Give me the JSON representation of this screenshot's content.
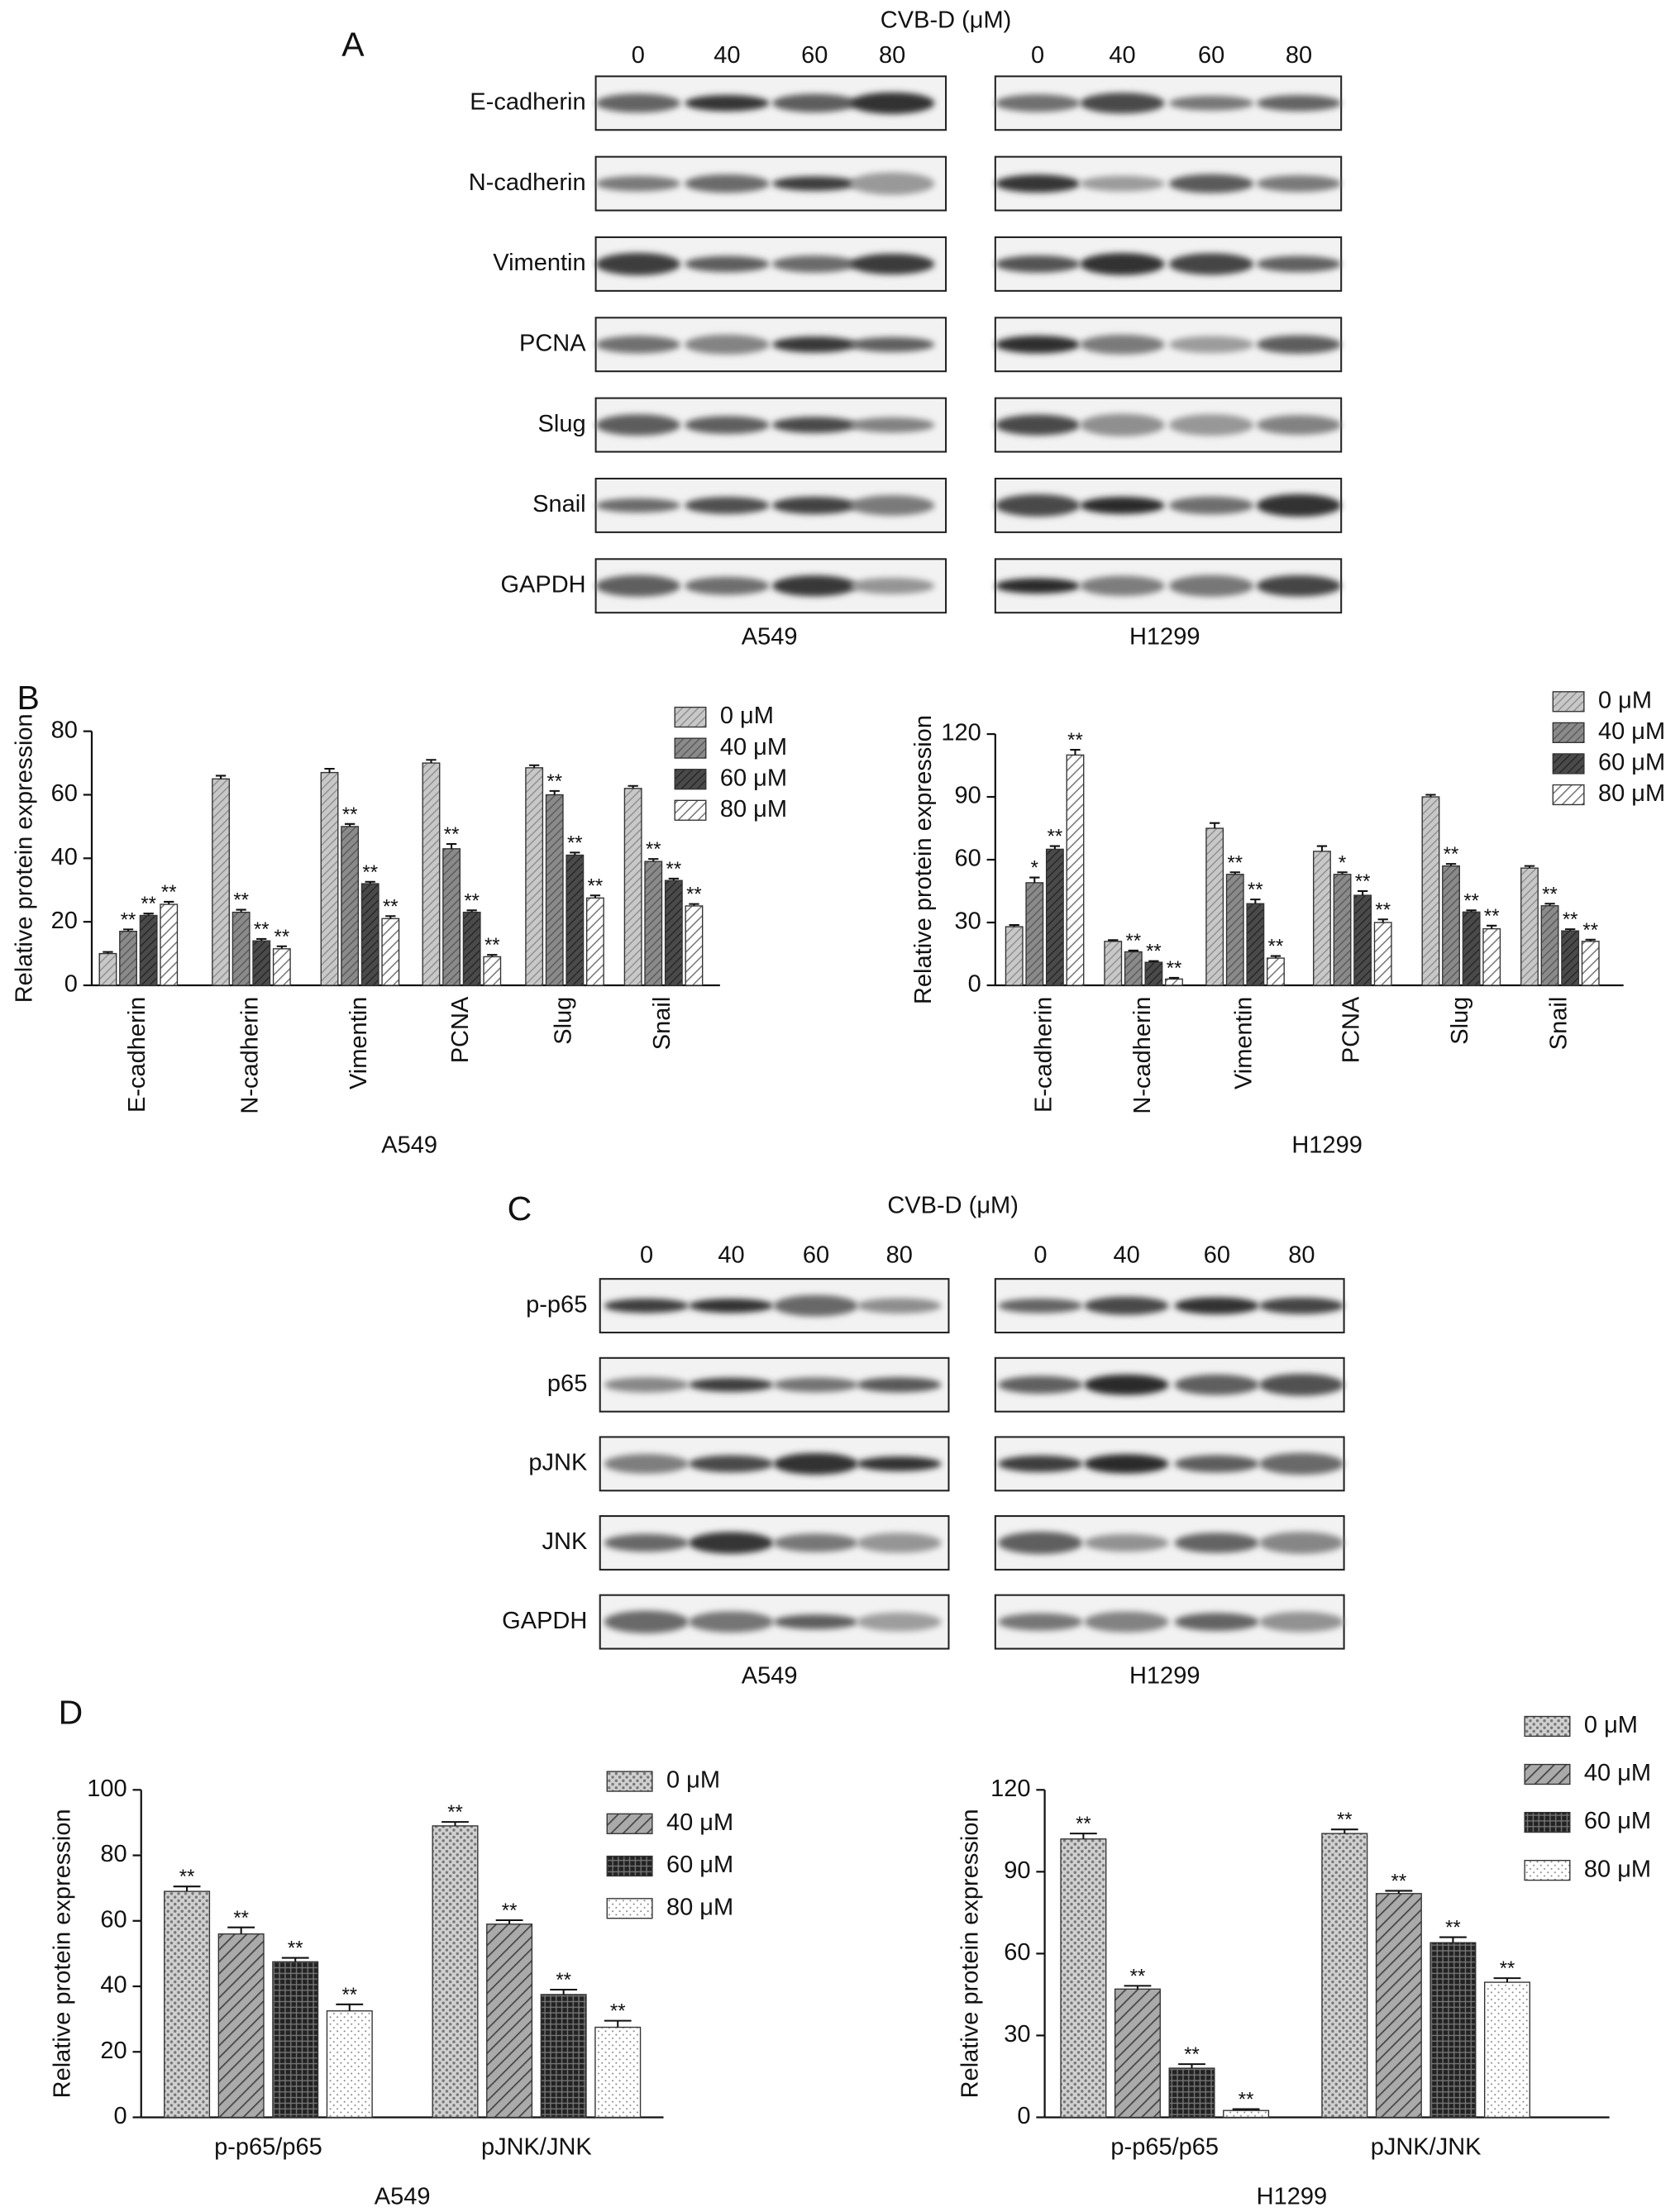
{
  "panels": [
    "A",
    "B",
    "C",
    "D"
  ],
  "blots": [
    {
      "title": "CVB-D (μM)",
      "cell_lines": [
        {
          "name": "A549",
          "doses": [
            "0",
            "40",
            "60",
            "80"
          ]
        },
        {
          "name": "H1299",
          "doses": [
            "0",
            "40",
            "60",
            "80"
          ]
        }
      ],
      "proteins": [
        "E-cadherin",
        "N-cadherin",
        "Vimentin",
        "PCNA",
        "Slug",
        "Snail",
        "GAPDH"
      ]
    },
    {
      "title": "CVB-D (μM)",
      "cell_lines": [
        {
          "name": "A549",
          "doses": [
            "0",
            "40",
            "60",
            "80"
          ]
        },
        {
          "name": "H1299",
          "doses": [
            "0",
            "40",
            "60",
            "80"
          ]
        }
      ],
      "proteins": [
        "p-p65",
        "p65",
        "pJNK",
        "JNK",
        "GAPDH"
      ]
    }
  ],
  "chart_data": [
    {
      "type": "bar",
      "ylabel": "Relative protein expression",
      "xlabel": "A549",
      "categories": [
        "E-cadherin",
        "N-cadherin",
        "Vimentin",
        "PCNA",
        "Slug",
        "Snail"
      ],
      "ylim": [
        0,
        80
      ],
      "yticks": [
        0,
        20,
        40,
        60,
        80
      ],
      "category_rotation": 90,
      "series": [
        {
          "name": "0 μM",
          "pattern": "b0",
          "values": [
            10,
            65,
            67,
            70,
            68.5,
            62
          ],
          "errors": [
            0.5,
            1,
            1.2,
            1,
            0.8,
            0.8
          ],
          "annotations": [
            null,
            null,
            null,
            null,
            null,
            null
          ]
        },
        {
          "name": "40 μM",
          "pattern": "b1",
          "values": [
            17,
            23,
            50,
            43,
            60,
            39
          ],
          "errors": [
            0.6,
            0.8,
            0.8,
            1.5,
            1.2,
            0.8
          ],
          "annotations": [
            "**",
            "**",
            "**",
            "**",
            "**",
            "**"
          ]
        },
        {
          "name": "60 μM",
          "pattern": "b2",
          "values": [
            22,
            14,
            32,
            23,
            41,
            33
          ],
          "errors": [
            0.6,
            0.6,
            0.6,
            0.6,
            0.8,
            0.6
          ],
          "annotations": [
            "**",
            "**",
            "**",
            "**",
            "**",
            "**"
          ]
        },
        {
          "name": "80 μM",
          "pattern": "b3",
          "values": [
            25.5,
            11.5,
            21,
            9,
            27.5,
            25
          ],
          "errors": [
            0.8,
            0.8,
            0.8,
            0.6,
            0.8,
            0.6
          ],
          "annotations": [
            "**",
            "**",
            "**",
            "**",
            "**",
            "**"
          ]
        }
      ]
    },
    {
      "type": "bar",
      "ylabel": "Relative protein expression",
      "xlabel": "H1299",
      "categories": [
        "E-cadherin",
        "N-cadherin",
        "Vimentin",
        "PCNA",
        "Slug",
        "Snail"
      ],
      "ylim": [
        0,
        120
      ],
      "yticks": [
        0,
        30,
        60,
        90,
        120
      ],
      "category_rotation": 90,
      "series": [
        {
          "name": "0 μM",
          "pattern": "b0",
          "values": [
            28,
            21,
            75,
            64,
            90,
            56
          ],
          "errors": [
            0.8,
            0.6,
            2.5,
            2.5,
            1,
            1
          ],
          "annotations": [
            null,
            null,
            null,
            null,
            null,
            null
          ]
        },
        {
          "name": "40 μM",
          "pattern": "b1",
          "values": [
            49,
            16,
            53,
            53,
            57,
            38
          ],
          "errors": [
            2.5,
            0.6,
            1,
            1,
            1,
            1
          ],
          "annotations": [
            "*",
            "**",
            "**",
            "*",
            "**",
            "**"
          ]
        },
        {
          "name": "60 μM",
          "pattern": "b2",
          "values": [
            65,
            11,
            39,
            43,
            35,
            26
          ],
          "errors": [
            1.5,
            0.6,
            2,
            2,
            0.8,
            0.8
          ],
          "annotations": [
            "**",
            "**",
            "**",
            "**",
            "**",
            "**"
          ]
        },
        {
          "name": "80 μM",
          "pattern": "b3",
          "values": [
            110,
            3,
            13,
            30,
            27,
            21
          ],
          "errors": [
            2.5,
            0.6,
            1,
            1.5,
            1.5,
            0.8
          ],
          "annotations": [
            "**",
            "**",
            "**",
            "**",
            "**",
            "**"
          ]
        }
      ]
    },
    {
      "type": "bar",
      "ylabel": "Relative protein expression",
      "xlabel": "A549",
      "categories": [
        "p-p65/p65",
        "pJNK/JNK"
      ],
      "ylim": [
        0,
        100
      ],
      "yticks": [
        0,
        20,
        40,
        60,
        80,
        100
      ],
      "category_rotation": 0,
      "series": [
        {
          "name": "0 μM",
          "pattern": "d0",
          "values": [
            69,
            89
          ],
          "errors": [
            1.5,
            1.2
          ],
          "annotations": [
            "**",
            "**"
          ]
        },
        {
          "name": "40 μM",
          "pattern": "d1",
          "values": [
            56,
            59
          ],
          "errors": [
            2,
            1.2
          ],
          "annotations": [
            "**",
            "**"
          ]
        },
        {
          "name": "60 μM",
          "pattern": "d2",
          "values": [
            47.5,
            37.5
          ],
          "errors": [
            1.2,
            1.5
          ],
          "annotations": [
            "**",
            "**"
          ]
        },
        {
          "name": "80 μM",
          "pattern": "d3",
          "values": [
            32.5,
            27.5
          ],
          "errors": [
            2,
            2
          ],
          "annotations": [
            "**",
            "**"
          ]
        }
      ]
    },
    {
      "type": "bar",
      "ylabel": "Relative protein expression",
      "xlabel": "H1299",
      "categories": [
        "p-p65/p65",
        "pJNK/JNK"
      ],
      "ylim": [
        0,
        120
      ],
      "yticks": [
        0,
        30,
        60,
        90,
        120
      ],
      "category_rotation": 0,
      "series": [
        {
          "name": "0 μM",
          "pattern": "d0",
          "values": [
            102,
            104
          ],
          "errors": [
            2,
            1.5
          ],
          "annotations": [
            "**",
            "**"
          ]
        },
        {
          "name": "40 μM",
          "pattern": "d1",
          "values": [
            47,
            82
          ],
          "errors": [
            1.2,
            1
          ],
          "annotations": [
            "**",
            "**"
          ]
        },
        {
          "name": "60 μM",
          "pattern": "d2",
          "values": [
            18,
            64
          ],
          "errors": [
            1.5,
            2
          ],
          "annotations": [
            "**",
            "**"
          ]
        },
        {
          "name": "80 μM",
          "pattern": "d3",
          "values": [
            2.5,
            49.5
          ],
          "errors": [
            0.5,
            1.5
          ],
          "annotations": [
            "**",
            "**"
          ]
        }
      ]
    }
  ]
}
